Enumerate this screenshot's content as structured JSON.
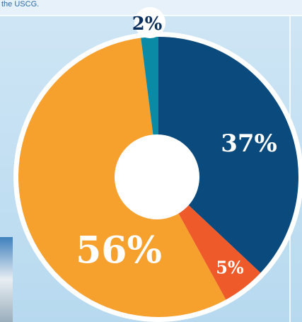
{
  "caption": "the USCG.",
  "chart_data": {
    "type": "pie",
    "categories": [
      null,
      null,
      null,
      null
    ],
    "values": [
      37,
      5,
      56,
      2
    ],
    "value_labels": [
      "37%",
      "5%",
      "56%",
      "2%"
    ],
    "colors": [
      "#0b4a7c",
      "#ef5a2a",
      "#f6a02e",
      "#0b8aa6"
    ]
  }
}
